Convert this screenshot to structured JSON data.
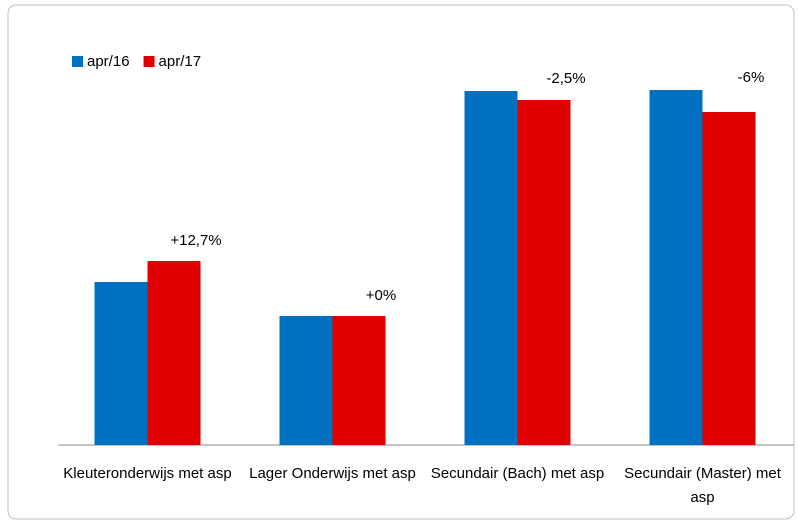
{
  "chart_data": {
    "type": "bar",
    "categories": [
      "Kleuteronderwijs met asp",
      "Lager Onderwijs met asp",
      "Secundair (Bach) met asp",
      "Secundair (Master) met asp"
    ],
    "series": [
      {
        "name": "apr/16",
        "color": "#0070c0",
        "values": [
          163,
          129,
          354,
          355
        ]
      },
      {
        "name": "apr/17",
        "color": "#e00000",
        "values": [
          184,
          129,
          345,
          333
        ]
      }
    ],
    "annotations": [
      "+12,7%",
      "+0%",
      "-2,5%",
      "-6%"
    ],
    "ylim": [
      0,
      400
    ],
    "legend": "top-left"
  }
}
